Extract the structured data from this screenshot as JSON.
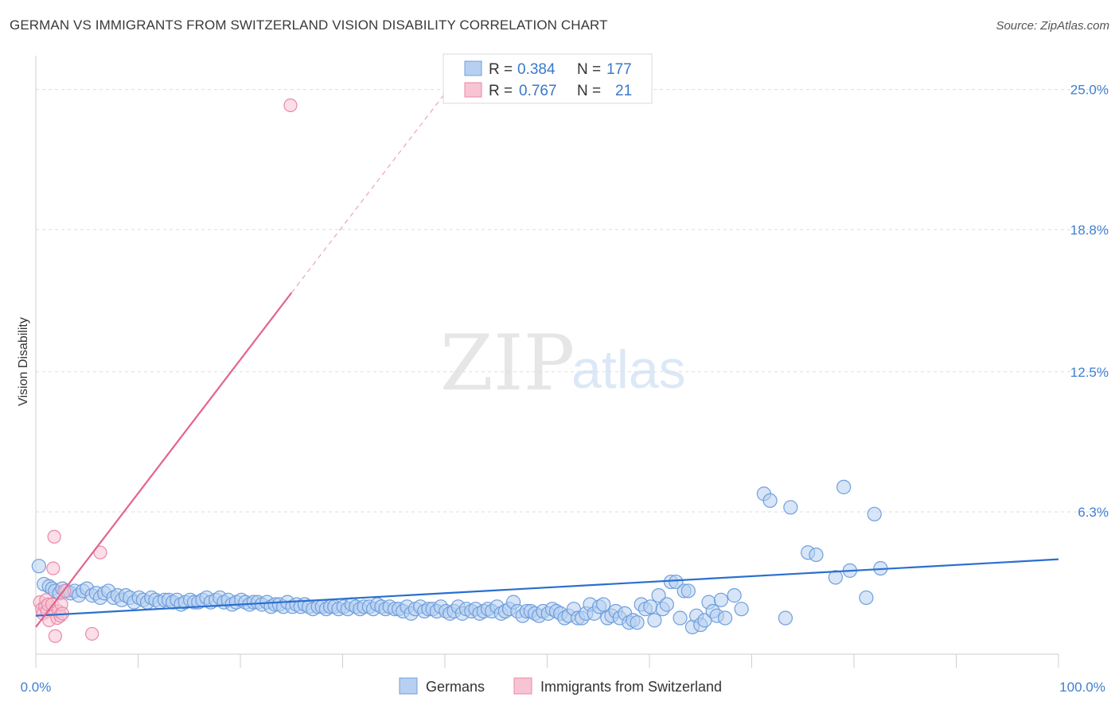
{
  "header": {
    "title": "GERMAN VS IMMIGRANTS FROM SWITZERLAND VISION DISABILITY CORRELATION CHART",
    "source": "Source: ZipAtlas.com"
  },
  "watermark": {
    "zip": "ZIP",
    "atlas": "atlas"
  },
  "colors": {
    "blue_fill": "#b7d0f1",
    "blue_stroke": "#6f9fdd",
    "blue_line": "#2a6fcf",
    "pink_fill": "#f8c3d3",
    "pink_stroke": "#e88aa8",
    "pink_line": "#e2648e",
    "tick_text": "#3f7fd1",
    "grid": "#dddddd"
  },
  "stats": [
    {
      "r_label": "R =",
      "r_value": "0.384",
      "n_label": "N =",
      "n_value": "177"
    },
    {
      "r_label": "R =",
      "r_value": "0.767",
      "n_label": "N =",
      "n_value": "21"
    }
  ],
  "chart_data": {
    "type": "scatter",
    "title": "GERMAN VS IMMIGRANTS FROM SWITZERLAND VISION DISABILITY CORRELATION CHART",
    "xlabel": "",
    "ylabel": "Vision Disability",
    "xlim": [
      0,
      100
    ],
    "ylim": [
      0,
      26.5
    ],
    "x_tick_labels": [
      "0.0%",
      "100.0%"
    ],
    "y_ticks": [
      6.3,
      12.5,
      18.8,
      25.0
    ],
    "y_tick_labels": [
      "6.3%",
      "12.5%",
      "18.8%",
      "25.0%"
    ],
    "grid": true,
    "legend": {
      "position": "bottom-center",
      "entries": [
        "Germans",
        "Immigrants from Switzerland"
      ]
    },
    "series": [
      {
        "name": "Germans",
        "r": 0.384,
        "n": 177,
        "trend": {
          "x": [
            0,
            100
          ],
          "y": [
            1.7,
            4.2
          ]
        },
        "points": [
          [
            0.3,
            3.9
          ],
          [
            0.8,
            3.1
          ],
          [
            1.3,
            3.0
          ],
          [
            1.6,
            2.9
          ],
          [
            1.9,
            2.8
          ],
          [
            2.3,
            2.7
          ],
          [
            2.6,
            2.9
          ],
          [
            3.0,
            2.8
          ],
          [
            3.4,
            2.7
          ],
          [
            3.8,
            2.8
          ],
          [
            4.2,
            2.6
          ],
          [
            4.6,
            2.8
          ],
          [
            5.0,
            2.9
          ],
          [
            5.5,
            2.6
          ],
          [
            5.9,
            2.7
          ],
          [
            6.3,
            2.5
          ],
          [
            6.7,
            2.7
          ],
          [
            7.1,
            2.8
          ],
          [
            7.6,
            2.5
          ],
          [
            8.0,
            2.6
          ],
          [
            8.4,
            2.4
          ],
          [
            8.8,
            2.6
          ],
          [
            9.2,
            2.5
          ],
          [
            9.6,
            2.3
          ],
          [
            10.1,
            2.5
          ],
          [
            10.5,
            2.4
          ],
          [
            10.9,
            2.3
          ],
          [
            11.3,
            2.5
          ],
          [
            11.7,
            2.4
          ],
          [
            12.1,
            2.3
          ],
          [
            12.6,
            2.4
          ],
          [
            13.0,
            2.4
          ],
          [
            13.4,
            2.3
          ],
          [
            13.8,
            2.4
          ],
          [
            14.2,
            2.2
          ],
          [
            14.6,
            2.3
          ],
          [
            15.1,
            2.4
          ],
          [
            15.5,
            2.3
          ],
          [
            15.9,
            2.3
          ],
          [
            16.3,
            2.4
          ],
          [
            16.7,
            2.5
          ],
          [
            17.1,
            2.3
          ],
          [
            17.6,
            2.4
          ],
          [
            18.0,
            2.5
          ],
          [
            18.4,
            2.3
          ],
          [
            18.8,
            2.4
          ],
          [
            19.2,
            2.2
          ],
          [
            19.6,
            2.3
          ],
          [
            20.1,
            2.4
          ],
          [
            20.5,
            2.3
          ],
          [
            20.9,
            2.2
          ],
          [
            21.3,
            2.3
          ],
          [
            21.7,
            2.3
          ],
          [
            22.1,
            2.2
          ],
          [
            22.6,
            2.3
          ],
          [
            23.0,
            2.1
          ],
          [
            23.4,
            2.2
          ],
          [
            23.8,
            2.2
          ],
          [
            24.2,
            2.1
          ],
          [
            24.6,
            2.3
          ],
          [
            25.1,
            2.1
          ],
          [
            25.5,
            2.2
          ],
          [
            25.9,
            2.1
          ],
          [
            26.3,
            2.2
          ],
          [
            26.7,
            2.1
          ],
          [
            27.1,
            2.0
          ],
          [
            27.6,
            2.1
          ],
          [
            28.0,
            2.1
          ],
          [
            28.4,
            2.0
          ],
          [
            28.8,
            2.1
          ],
          [
            29.2,
            2.1
          ],
          [
            29.6,
            2.0
          ],
          [
            30.1,
            2.1
          ],
          [
            30.5,
            2.0
          ],
          [
            30.9,
            2.2
          ],
          [
            31.3,
            2.1
          ],
          [
            31.7,
            2.0
          ],
          [
            32.1,
            2.1
          ],
          [
            32.6,
            2.1
          ],
          [
            33.0,
            2.0
          ],
          [
            33.4,
            2.2
          ],
          [
            33.8,
            2.1
          ],
          [
            34.2,
            2.0
          ],
          [
            34.6,
            2.1
          ],
          [
            35.1,
            2.0
          ],
          [
            35.5,
            2.0
          ],
          [
            35.9,
            1.9
          ],
          [
            36.3,
            2.1
          ],
          [
            36.7,
            1.8
          ],
          [
            37.1,
            2.0
          ],
          [
            37.6,
            2.1
          ],
          [
            38.0,
            1.9
          ],
          [
            38.4,
            2.0
          ],
          [
            38.8,
            2.0
          ],
          [
            39.2,
            1.9
          ],
          [
            39.6,
            2.1
          ],
          [
            40.1,
            1.9
          ],
          [
            40.5,
            1.8
          ],
          [
            40.9,
            1.9
          ],
          [
            41.3,
            2.1
          ],
          [
            41.7,
            1.8
          ],
          [
            42.1,
            2.0
          ],
          [
            42.6,
            1.9
          ],
          [
            43.0,
            2.0
          ],
          [
            43.4,
            1.8
          ],
          [
            43.8,
            1.9
          ],
          [
            44.2,
            2.0
          ],
          [
            44.6,
            1.9
          ],
          [
            45.1,
            2.1
          ],
          [
            45.5,
            1.8
          ],
          [
            45.9,
            1.9
          ],
          [
            46.3,
            2.0
          ],
          [
            46.7,
            2.3
          ],
          [
            47.1,
            1.9
          ],
          [
            47.6,
            1.7
          ],
          [
            48.0,
            1.9
          ],
          [
            48.4,
            1.9
          ],
          [
            48.8,
            1.8
          ],
          [
            49.2,
            1.7
          ],
          [
            49.6,
            1.9
          ],
          [
            50.1,
            1.8
          ],
          [
            50.5,
            2.0
          ],
          [
            50.9,
            1.9
          ],
          [
            51.3,
            1.8
          ],
          [
            51.7,
            1.6
          ],
          [
            52.1,
            1.7
          ],
          [
            52.6,
            2.0
          ],
          [
            53.0,
            1.6
          ],
          [
            53.4,
            1.6
          ],
          [
            53.8,
            1.8
          ],
          [
            54.2,
            2.2
          ],
          [
            54.6,
            1.8
          ],
          [
            55.1,
            2.1
          ],
          [
            55.5,
            2.2
          ],
          [
            55.9,
            1.6
          ],
          [
            56.3,
            1.7
          ],
          [
            56.7,
            1.9
          ],
          [
            57.1,
            1.6
          ],
          [
            57.6,
            1.8
          ],
          [
            58.0,
            1.4
          ],
          [
            58.4,
            1.5
          ],
          [
            58.8,
            1.4
          ],
          [
            59.2,
            2.2
          ],
          [
            59.6,
            2.0
          ],
          [
            60.1,
            2.1
          ],
          [
            60.5,
            1.5
          ],
          [
            60.9,
            2.6
          ],
          [
            61.3,
            2.0
          ],
          [
            61.7,
            2.2
          ],
          [
            62.1,
            3.2
          ],
          [
            62.6,
            3.2
          ],
          [
            63.0,
            1.6
          ],
          [
            63.4,
            2.8
          ],
          [
            63.8,
            2.8
          ],
          [
            64.2,
            1.2
          ],
          [
            64.6,
            1.7
          ],
          [
            65.0,
            1.3
          ],
          [
            65.4,
            1.5
          ],
          [
            65.8,
            2.3
          ],
          [
            66.2,
            1.9
          ],
          [
            66.6,
            1.7
          ],
          [
            67.0,
            2.4
          ],
          [
            67.4,
            1.6
          ],
          [
            68.3,
            2.6
          ],
          [
            69.0,
            2.0
          ],
          [
            73.3,
            1.6
          ],
          [
            73.8,
            6.5
          ],
          [
            75.5,
            4.5
          ],
          [
            76.3,
            4.4
          ],
          [
            78.2,
            3.4
          ],
          [
            79.0,
            7.4
          ],
          [
            81.2,
            2.5
          ],
          [
            79.6,
            3.7
          ],
          [
            82.0,
            6.2
          ],
          [
            82.6,
            3.8
          ],
          [
            71.2,
            7.1
          ],
          [
            71.8,
            6.8
          ]
        ]
      },
      {
        "name": "Immigrants from Switzerland",
        "r": 0.767,
        "n": 21,
        "trend": {
          "x": [
            0,
            25.0
          ],
          "y": [
            1.2,
            16.0
          ],
          "dashed_to": {
            "x": 40.3,
            "y": 25.0
          }
        },
        "points": [
          [
            0.4,
            2.3
          ],
          [
            0.6,
            2.0
          ],
          [
            0.7,
            1.8
          ],
          [
            0.9,
            2.1
          ],
          [
            1.0,
            2.4
          ],
          [
            1.1,
            1.9
          ],
          [
            1.2,
            2.2
          ],
          [
            1.3,
            1.5
          ],
          [
            1.6,
            2.2
          ],
          [
            1.7,
            3.8
          ],
          [
            1.8,
            5.2
          ],
          [
            1.9,
            0.8
          ],
          [
            2.1,
            1.6
          ],
          [
            2.2,
            1.9
          ],
          [
            2.4,
            1.7
          ],
          [
            2.5,
            2.2
          ],
          [
            2.6,
            1.8
          ],
          [
            2.8,
            2.8
          ],
          [
            5.5,
            0.9
          ],
          [
            6.3,
            4.5
          ],
          [
            24.9,
            24.3
          ]
        ]
      }
    ]
  }
}
